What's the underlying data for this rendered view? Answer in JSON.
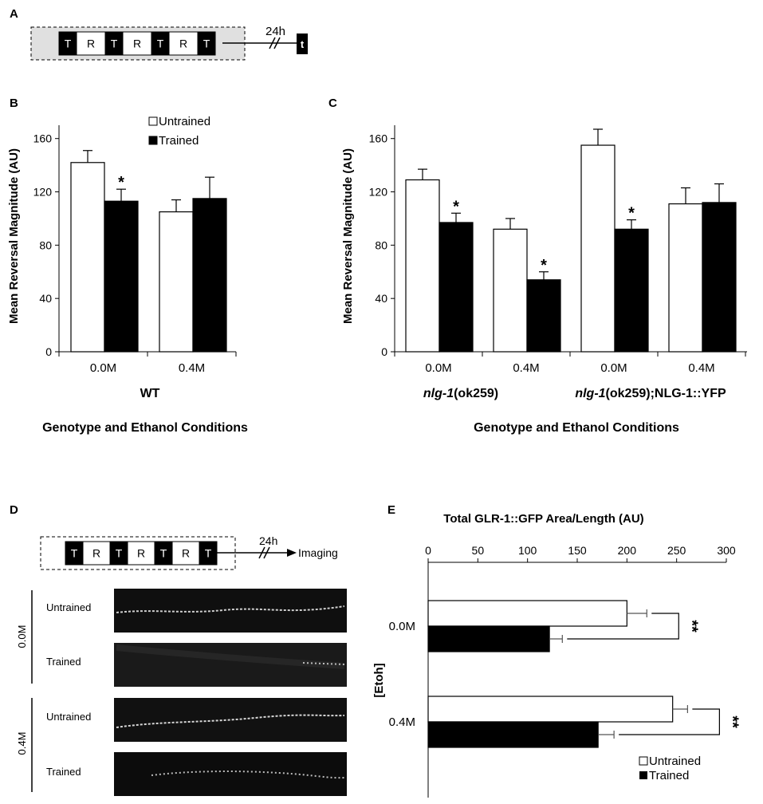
{
  "panels": {
    "A": {
      "letter": "A",
      "sequence": [
        "T",
        "R",
        "T",
        "R",
        "T",
        "R",
        "T"
      ],
      "interval": "24h",
      "test_label": "t"
    },
    "B": {
      "letter": "B",
      "legend": {
        "untrained": "Untrained",
        "trained": "Trained"
      },
      "group_label": "WT",
      "xlabel": "Genotype and Ethanol Conditions"
    },
    "C": {
      "letter": "C",
      "group_labels": [
        {
          "gene": "nlg-1",
          "rest": "(ok259)"
        },
        {
          "gene": "nlg-1",
          "rest": "(ok259);NLG-1::YFP"
        }
      ],
      "xlabel": "Genotype and Ethanol Conditions"
    },
    "D": {
      "letter": "D",
      "sequence": [
        "T",
        "R",
        "T",
        "R",
        "T",
        "R",
        "T"
      ],
      "interval": "24h",
      "imaging_label": "Imaging",
      "groups": [
        {
          "label": "0.0M",
          "rows": [
            "Untrained",
            "Trained"
          ]
        },
        {
          "label": "0.4M",
          "rows": [
            "Untrained",
            "Trained"
          ]
        }
      ]
    },
    "E": {
      "letter": "E",
      "legend": {
        "untrained": "Untrained",
        "trained": "Trained"
      }
    }
  },
  "colors": {
    "untrained": "#ffffff",
    "trained": "#000000",
    "schematic_shade": "#e0e0e0"
  },
  "chart_data": [
    {
      "panel": "B",
      "type": "bar",
      "categories": [
        "0.0M",
        "0.4M"
      ],
      "series": [
        {
          "name": "Untrained",
          "values": [
            142,
            105
          ],
          "errors": [
            9,
            9
          ]
        },
        {
          "name": "Trained",
          "values": [
            113,
            115
          ],
          "errors": [
            9,
            16
          ]
        }
      ],
      "significance": [
        {
          "category": "0.0M",
          "series": "Trained",
          "mark": "*"
        }
      ],
      "ylabel": "Mean Reversal Magnitude (AU)",
      "xlabel": "Genotype and Ethanol Conditions",
      "yticks": [
        0,
        40,
        80,
        120,
        160
      ],
      "ylim": [
        0,
        170
      ]
    },
    {
      "panel": "C",
      "type": "bar",
      "categories": [
        "0.0M",
        "0.4M",
        "0.0M",
        "0.4M"
      ],
      "series": [
        {
          "name": "Untrained",
          "values": [
            129,
            92,
            155,
            111
          ],
          "errors": [
            8,
            8,
            12,
            12
          ]
        },
        {
          "name": "Trained",
          "values": [
            97,
            54,
            92,
            112
          ],
          "errors": [
            7,
            6,
            7,
            14
          ]
        }
      ],
      "significance": [
        {
          "category_index": 0,
          "series": "Trained",
          "mark": "*"
        },
        {
          "category_index": 1,
          "series": "Trained",
          "mark": "*"
        },
        {
          "category_index": 2,
          "series": "Trained",
          "mark": "*"
        }
      ],
      "ylabel": "Mean Reversal Magnitude (AU)",
      "xlabel": "Genotype and Ethanol Conditions",
      "yticks": [
        0,
        40,
        80,
        120,
        160
      ],
      "ylim": [
        0,
        170
      ]
    },
    {
      "panel": "E",
      "type": "bar",
      "orientation": "horizontal",
      "categories": [
        "0.0M",
        "0.4M"
      ],
      "series": [
        {
          "name": "Untrained",
          "values": [
            200,
            246
          ],
          "errors": [
            20,
            15
          ]
        },
        {
          "name": "Trained",
          "values": [
            122,
            171
          ],
          "errors": [
            13,
            16
          ]
        }
      ],
      "significance": [
        {
          "category": "0.0M",
          "mark": "**"
        },
        {
          "category": "0.4M",
          "mark": "**"
        }
      ],
      "xlabel": "Total GLR-1::GFP Area/Length (AU)",
      "ylabel": "[Etoh]",
      "xticks": [
        0,
        50,
        100,
        150,
        200,
        250,
        300
      ],
      "xlim": [
        0,
        300
      ]
    }
  ]
}
